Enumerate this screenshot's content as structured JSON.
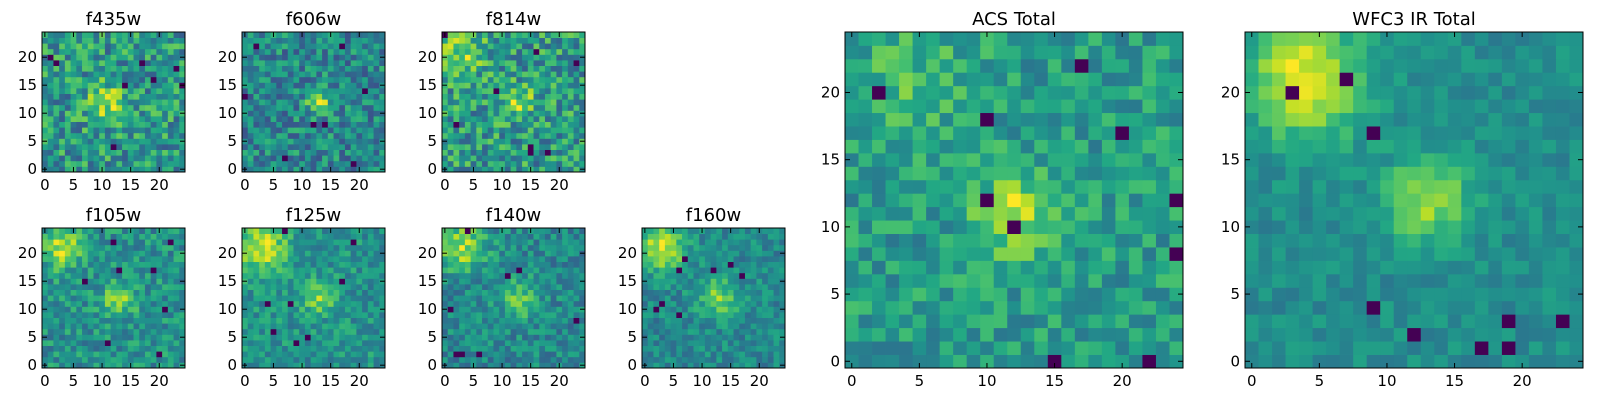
{
  "chart_data": [
    {
      "type": "heatmap",
      "title": "f435w",
      "size": 25,
      "seed": 11,
      "xticks": [
        0,
        5,
        10,
        15,
        20
      ],
      "yticks": [
        0,
        5,
        10,
        15,
        20
      ],
      "xlim": [
        -0.5,
        24.5
      ],
      "ylim": [
        -0.5,
        24.5
      ],
      "blobs": [
        [
          11,
          12,
          2.5,
          0.35
        ]
      ],
      "noise": 0.55,
      "base": 0.45,
      "dark_spots": 8,
      "colormap": "viridis"
    },
    {
      "type": "heatmap",
      "title": "f606w",
      "size": 25,
      "seed": 23,
      "xticks": [
        0,
        5,
        10,
        15,
        20
      ],
      "yticks": [
        0,
        5,
        10,
        15,
        20
      ],
      "xlim": [
        -0.5,
        24.5
      ],
      "ylim": [
        -0.5,
        24.5
      ],
      "blobs": [
        [
          13,
          12,
          1.5,
          0.55
        ]
      ],
      "noise": 0.55,
      "base": 0.35,
      "dark_spots": 8,
      "colormap": "viridis"
    },
    {
      "type": "heatmap",
      "title": "f814w",
      "size": 25,
      "seed": 37,
      "xticks": [
        0,
        5,
        10,
        15,
        20
      ],
      "yticks": [
        0,
        5,
        10,
        15,
        20
      ],
      "xlim": [
        -0.5,
        24.5
      ],
      "ylim": [
        -0.5,
        24.5
      ],
      "blobs": [
        [
          3,
          21,
          3,
          0.3
        ],
        [
          13,
          12,
          2,
          0.3
        ]
      ],
      "noise": 0.55,
      "base": 0.4,
      "dark_spots": 8,
      "colormap": "viridis"
    },
    {
      "type": "heatmap",
      "title": "f105w",
      "size": 25,
      "seed": 41,
      "xticks": [
        0,
        5,
        10,
        15,
        20
      ],
      "yticks": [
        0,
        5,
        10,
        15,
        20
      ],
      "xlim": [
        -0.5,
        24.5
      ],
      "ylim": [
        -0.5,
        24.5
      ],
      "blobs": [
        [
          3,
          21,
          2.5,
          0.45
        ],
        [
          13,
          12,
          2,
          0.4
        ]
      ],
      "noise": 0.4,
      "base": 0.35,
      "dark_spots": 8,
      "colormap": "viridis"
    },
    {
      "type": "heatmap",
      "title": "f125w",
      "size": 25,
      "seed": 53,
      "xticks": [
        0,
        5,
        10,
        15,
        20
      ],
      "yticks": [
        0,
        5,
        10,
        15,
        20
      ],
      "xlim": [
        -0.5,
        24.5
      ],
      "ylim": [
        -0.5,
        24.5
      ],
      "blobs": [
        [
          3,
          21,
          3,
          0.5
        ],
        [
          13,
          12,
          2,
          0.35
        ]
      ],
      "noise": 0.35,
      "base": 0.3,
      "dark_spots": 8,
      "colormap": "viridis"
    },
    {
      "type": "heatmap",
      "title": "f140w",
      "size": 25,
      "seed": 67,
      "xticks": [
        0,
        5,
        10,
        15,
        20
      ],
      "yticks": [
        0,
        5,
        10,
        15,
        20
      ],
      "xlim": [
        -0.5,
        24.5
      ],
      "ylim": [
        -0.5,
        24.5
      ],
      "blobs": [
        [
          3,
          21,
          3,
          0.5
        ],
        [
          13,
          12,
          2.5,
          0.35
        ]
      ],
      "noise": 0.4,
      "base": 0.3,
      "dark_spots": 8,
      "colormap": "viridis"
    },
    {
      "type": "heatmap",
      "title": "f160w",
      "size": 25,
      "seed": 79,
      "xticks": [
        0,
        5,
        10,
        15,
        20
      ],
      "yticks": [
        0,
        5,
        10,
        15,
        20
      ],
      "xlim": [
        -0.5,
        24.5
      ],
      "ylim": [
        -0.5,
        24.5
      ],
      "blobs": [
        [
          3,
          21,
          3,
          0.55
        ],
        [
          13,
          12,
          2.5,
          0.4
        ]
      ],
      "noise": 0.35,
      "base": 0.3,
      "dark_spots": 8,
      "colormap": "viridis"
    },
    {
      "type": "heatmap",
      "title": "ACS Total",
      "size": 25,
      "seed": 97,
      "xticks": [
        0,
        5,
        10,
        15,
        20
      ],
      "yticks": [
        0,
        5,
        10,
        15,
        20
      ],
      "xlim": [
        -0.5,
        24.5
      ],
      "ylim": [
        -0.5,
        24.5
      ],
      "blobs": [
        [
          12,
          11,
          2,
          0.4
        ],
        [
          5,
          21,
          3,
          0.15
        ]
      ],
      "noise": 0.35,
      "base": 0.55,
      "dark_spots": 10,
      "colormap": "viridis"
    },
    {
      "type": "heatmap",
      "title": "WFC3 IR Total",
      "size": 25,
      "seed": 113,
      "xticks": [
        0,
        5,
        10,
        15,
        20
      ],
      "yticks": [
        0,
        5,
        10,
        15,
        20
      ],
      "xlim": [
        -0.5,
        24.5
      ],
      "ylim": [
        -0.5,
        24.5
      ],
      "blobs": [
        [
          4,
          21,
          3,
          0.6
        ],
        [
          13,
          12,
          2.2,
          0.45
        ]
      ],
      "noise": 0.22,
      "base": 0.35,
      "dark_spots": 10,
      "colormap": "viridis"
    }
  ]
}
